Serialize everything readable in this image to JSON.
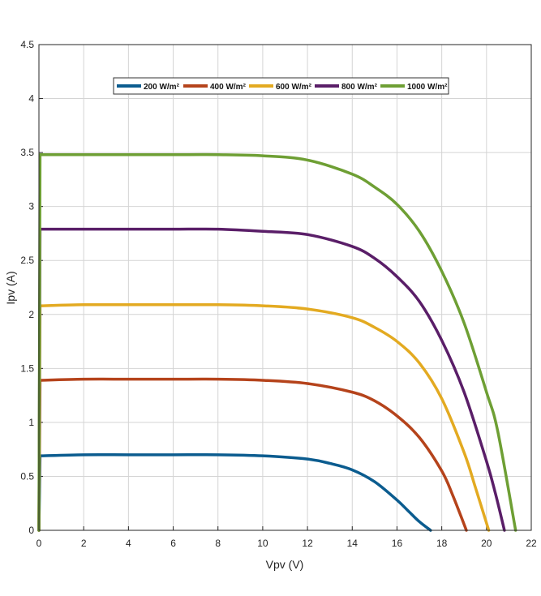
{
  "chart_data": {
    "type": "line",
    "title": "",
    "xlabel": "Vpv (V)",
    "ylabel": "Ipv (A)",
    "xlim": [
      0,
      22
    ],
    "ylim": [
      0,
      4.5
    ],
    "xticks": [
      0,
      2,
      4,
      6,
      8,
      10,
      12,
      14,
      16,
      18,
      20,
      22
    ],
    "yticks": [
      0,
      0.5,
      1,
      1.5,
      2,
      2.5,
      3,
      3.5,
      4,
      4.5
    ],
    "grid": true,
    "legend_position": "top, horizontal",
    "series": [
      {
        "name": "200 W/m²",
        "color": "#0b5c8f",
        "x": [
          0,
          0.05,
          2,
          4,
          6,
          8,
          10,
          12,
          13,
          14,
          15,
          16,
          16.5,
          17,
          17.5
        ],
        "y": [
          0,
          0.69,
          0.7,
          0.7,
          0.7,
          0.7,
          0.69,
          0.66,
          0.62,
          0.56,
          0.45,
          0.28,
          0.18,
          0.08,
          0
        ]
      },
      {
        "name": "400 W/m²",
        "color": "#b5431b",
        "x": [
          0,
          0.05,
          2,
          4,
          6,
          8,
          10,
          12,
          14,
          15,
          16,
          17,
          18,
          18.5,
          19.1
        ],
        "y": [
          0,
          1.39,
          1.4,
          1.4,
          1.4,
          1.4,
          1.39,
          1.36,
          1.28,
          1.2,
          1.06,
          0.86,
          0.55,
          0.32,
          0
        ]
      },
      {
        "name": "600 W/m²",
        "color": "#e3aa21",
        "x": [
          0,
          0.05,
          2,
          4,
          6,
          8,
          10,
          12,
          14,
          15,
          16,
          17,
          18,
          19,
          19.5,
          20.1
        ],
        "y": [
          0,
          2.08,
          2.09,
          2.09,
          2.09,
          2.09,
          2.08,
          2.05,
          1.97,
          1.88,
          1.75,
          1.55,
          1.22,
          0.72,
          0.4,
          0
        ]
      },
      {
        "name": "800 W/m²",
        "color": "#5a1e68",
        "x": [
          0,
          0.05,
          2,
          4,
          6,
          8,
          10,
          12,
          14,
          15,
          16,
          17,
          18,
          19,
          20,
          20.4,
          20.8
        ],
        "y": [
          0,
          2.79,
          2.79,
          2.79,
          2.79,
          2.79,
          2.77,
          2.74,
          2.63,
          2.52,
          2.35,
          2.12,
          1.76,
          1.28,
          0.64,
          0.34,
          0
        ]
      },
      {
        "name": "1000 W/m²",
        "color": "#6e9f34",
        "x": [
          0,
          0.05,
          2,
          4,
          6,
          8,
          10,
          12,
          14,
          15,
          16,
          17,
          18,
          19,
          20,
          20.5,
          21.3
        ],
        "y": [
          0,
          3.48,
          3.48,
          3.48,
          3.48,
          3.48,
          3.47,
          3.43,
          3.3,
          3.18,
          3.02,
          2.77,
          2.4,
          1.92,
          1.28,
          0.92,
          0
        ]
      }
    ]
  }
}
